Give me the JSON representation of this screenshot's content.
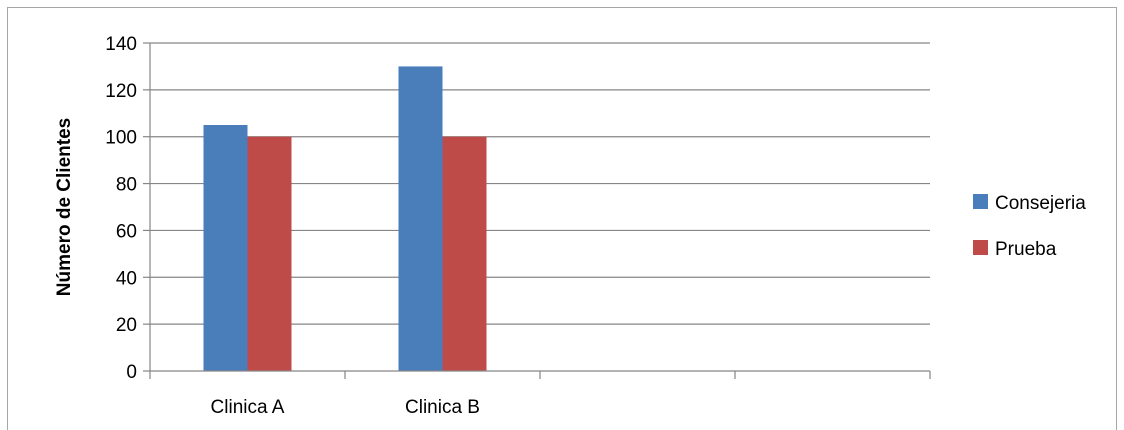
{
  "chart_data": {
    "type": "bar",
    "title": "",
    "xlabel": "",
    "ylabel": "Número de Clientes",
    "categories": [
      "Clinica A",
      "Clinica B",
      "",
      ""
    ],
    "series": [
      {
        "name": "Consejeria",
        "values": [
          105,
          130,
          null,
          null
        ],
        "color": "#4a7ebb"
      },
      {
        "name": "Prueba",
        "values": [
          100,
          100,
          null,
          null
        ],
        "color": "#be4b48"
      }
    ],
    "ylim": [
      0,
      140
    ],
    "yticks": [
      0,
      20,
      40,
      60,
      80,
      100,
      120,
      140
    ],
    "grid": true,
    "legend": "right"
  }
}
